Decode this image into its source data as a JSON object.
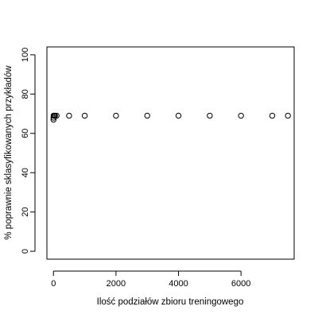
{
  "chart_data": {
    "type": "scatter",
    "xlabel": "Ilość podziałów zbioru treningowego",
    "ylabel": "% poprawnie sklasyfikowanych przykładów",
    "xlim": [
      -210,
      7700
    ],
    "ylim": [
      -4,
      104
    ],
    "x_ticks": [
      0,
      2000,
      4000,
      6000
    ],
    "y_ticks": [
      0,
      20,
      40,
      60,
      80,
      100
    ],
    "grid": false,
    "points": [
      {
        "x": 1,
        "y": 67
      },
      {
        "x": 2,
        "y": 68
      },
      {
        "x": 5,
        "y": 69
      },
      {
        "x": 10,
        "y": 69
      },
      {
        "x": 20,
        "y": 69
      },
      {
        "x": 50,
        "y": 69
      },
      {
        "x": 100,
        "y": 69
      },
      {
        "x": 500,
        "y": 69
      },
      {
        "x": 1000,
        "y": 69
      },
      {
        "x": 2000,
        "y": 69
      },
      {
        "x": 3000,
        "y": 69
      },
      {
        "x": 4000,
        "y": 69
      },
      {
        "x": 5000,
        "y": 69
      },
      {
        "x": 6000,
        "y": 69
      },
      {
        "x": 7000,
        "y": 69
      },
      {
        "x": 7500,
        "y": 69
      }
    ]
  }
}
